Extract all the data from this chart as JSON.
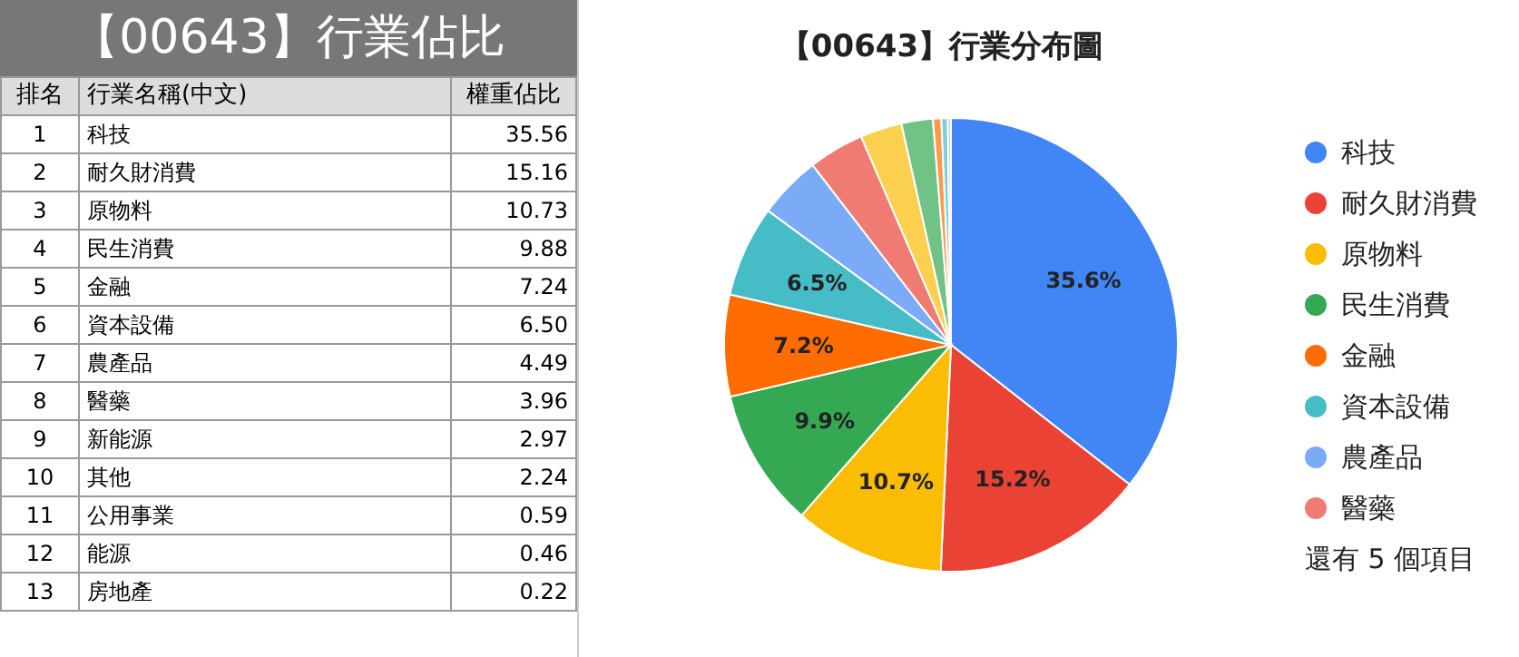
{
  "chart_data": {
    "type": "pie",
    "title": "【00643】行業分布圖",
    "categories": [
      "科技",
      "耐久財消費",
      "原物料",
      "民生消費",
      "金融",
      "資本設備",
      "農產品",
      "醫藥",
      null,
      null,
      null,
      null,
      null
    ],
    "values": [
      35.56,
      15.16,
      10.73,
      9.88,
      7.24,
      6.5,
      4.49,
      3.96,
      2.97,
      2.24,
      0.59,
      0.46,
      0.22
    ],
    "colors": [
      "#4285f4",
      "#ea4335",
      "#fbbc04",
      "#34a853",
      "#ff6d01",
      "#46bdc6",
      "#7baaf7",
      "#f07b72",
      "#fcd04f",
      "#71c287",
      "#ff994d",
      "#7ed1d7",
      "#b3cefb"
    ],
    "value_labels": [
      "35.6%",
      "15.2%",
      "10.7%",
      "9.9%",
      "7.2%",
      "6.5%",
      null,
      null,
      null,
      null,
      null,
      null,
      null
    ],
    "data_labels": true,
    "legend": "right",
    "annotations": [
      "【00643】行業佔比",
      "排名",
      "行業名稱(中文)",
      "權重佔比",
      "還有 5 個項目",
      "1",
      "2",
      "3",
      "4",
      "5",
      "6",
      "7",
      "8",
      "9",
      "10",
      "11",
      "12",
      "13",
      "35.56",
      "15.16",
      "10.73",
      "9.88",
      "7.24",
      "6.50",
      "4.49",
      "3.96",
      "2.97",
      "2.24",
      "0.59",
      "0.46",
      "0.22",
      "科技",
      "耐久財消費",
      "原物料",
      "民生消費",
      "金融",
      "資本設備",
      "農產品",
      "醫藥",
      "新能源",
      "其他",
      "公用事業",
      "能源",
      "房地產"
    ]
  }
}
